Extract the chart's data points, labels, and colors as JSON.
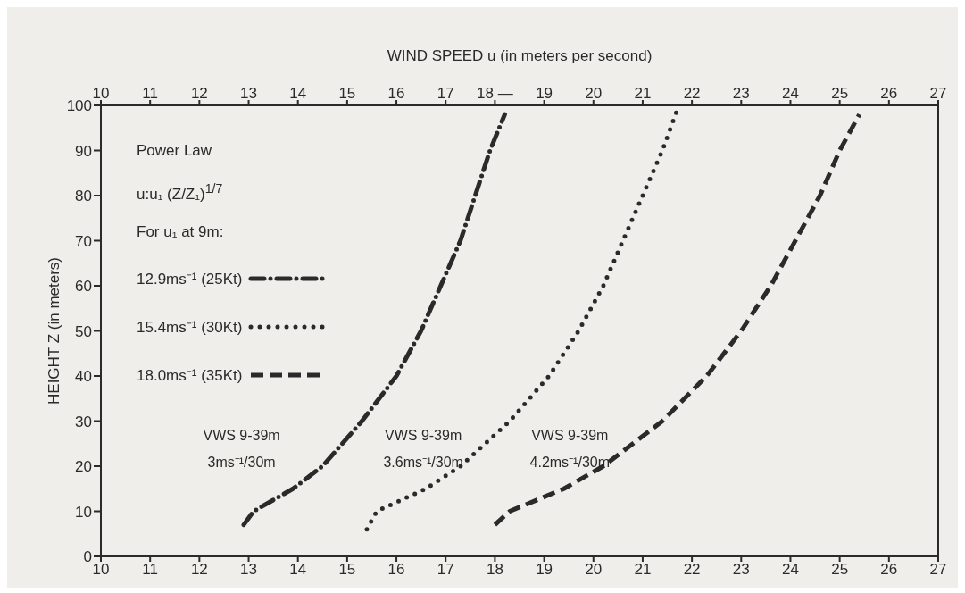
{
  "chart_data": {
    "type": "line",
    "x2label": "WIND SPEED u (in meters per second)",
    "ylabel": "HEIGHT Z (in meters)",
    "legend_title": "Power Law\nu:u₁ (Z/Z₁)$^{1/7}$\nFor u₁ at 9m:",
    "xlim": [
      10,
      27
    ],
    "xticks": [
      10,
      11,
      12,
      13,
      14,
      15,
      16,
      17,
      18,
      19,
      20,
      21,
      22,
      23,
      24,
      25,
      26,
      27
    ],
    "x2lim": [
      10,
      27
    ],
    "x2ticks": [
      10,
      11,
      12,
      13,
      14,
      15,
      16,
      17,
      {
        "value": 18,
        "label": "18 —"
      },
      19,
      20,
      21,
      22,
      23,
      24,
      25,
      26,
      27
    ],
    "ylim": [
      0,
      100
    ],
    "yticks": [
      0,
      10,
      20,
      30,
      40,
      50,
      60,
      70,
      80,
      90,
      100
    ],
    "grid": false,
    "legend": "top left",
    "marker": "none",
    "series": [
      {
        "name": "12.9ms⁻¹ (25Kt)",
        "color": "#2a2a2a",
        "line_style": "dashdot",
        "x": [
          12.9,
          13.1,
          13.9,
          14.5,
          15.3,
          16.0,
          16.5,
          16.9,
          17.3,
          17.6,
          17.9,
          18.2
        ],
        "values": [
          7,
          10,
          15,
          20,
          30,
          40,
          50,
          60,
          70,
          80,
          90,
          98
        ]
      },
      {
        "name": "15.4ms⁻¹ (30Kt)",
        "color": "#2a2a2a",
        "line_style": "dotted",
        "x": [
          15.4,
          15.6,
          16.6,
          17.3,
          18.3,
          19.1,
          19.7,
          20.2,
          20.6,
          21.0,
          21.4,
          21.7
        ],
        "values": [
          6,
          10,
          15,
          20,
          30,
          40,
          50,
          60,
          70,
          80,
          90,
          99
        ]
      },
      {
        "name": "18.0ms⁻¹ (35Kt)",
        "color": "#2a2a2a",
        "line_style": "dashed",
        "x": [
          18.0,
          18.3,
          19.4,
          20.2,
          21.4,
          22.3,
          23.0,
          23.6,
          24.1,
          24.6,
          25.0,
          25.4
        ],
        "values": [
          7,
          10,
          15,
          20,
          30,
          40,
          50,
          60,
          70,
          80,
          90,
          98
        ]
      }
    ],
    "annotations": [
      "VWS 9-39m\n3ms⁻¹/30m",
      "VWS 9-39m\n3.6ms⁻¹/30m",
      "VWS 9-39m\n4.2ms⁻¹/30m"
    ]
  }
}
